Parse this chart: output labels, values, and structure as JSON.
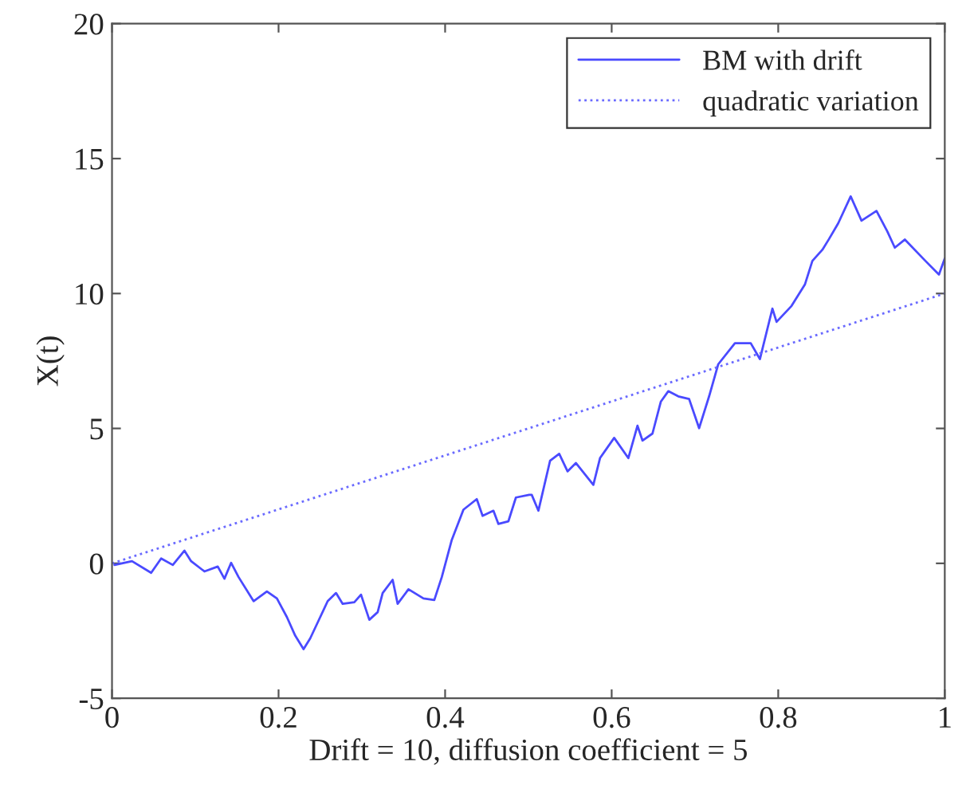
{
  "chart_data": {
    "type": "line",
    "xlabel": "Drift = 10, diffusion coefficient = 5",
    "ylabel": "X(t)",
    "xlim": [
      0,
      1
    ],
    "ylim": [
      -5,
      20
    ],
    "xticks": [
      0,
      0.2,
      0.4,
      0.6,
      0.8,
      1
    ],
    "yticks": [
      -5,
      0,
      5,
      10,
      15,
      20
    ],
    "grid": false,
    "legend": "top right",
    "series": [
      {
        "name": "BM with drift",
        "color": "#4a4aff",
        "line_style": "solid",
        "x": [
          0.003,
          0.024,
          0.047,
          0.059,
          0.073,
          0.087,
          0.095,
          0.111,
          0.127,
          0.135,
          0.143,
          0.152,
          0.17,
          0.186,
          0.198,
          0.21,
          0.22,
          0.23,
          0.238,
          0.247,
          0.259,
          0.269,
          0.277,
          0.291,
          0.299,
          0.309,
          0.319,
          0.325,
          0.337,
          0.343,
          0.356,
          0.374,
          0.387,
          0.396,
          0.408,
          0.422,
          0.438,
          0.445,
          0.458,
          0.464,
          0.476,
          0.485,
          0.501,
          0.504,
          0.512,
          0.526,
          0.537,
          0.547,
          0.557,
          0.578,
          0.586,
          0.603,
          0.62,
          0.631,
          0.637,
          0.649,
          0.659,
          0.668,
          0.68,
          0.693,
          0.705,
          0.717,
          0.728,
          0.748,
          0.767,
          0.778,
          0.793,
          0.798,
          0.816,
          0.832,
          0.841,
          0.853,
          0.861,
          0.872,
          0.887,
          0.9,
          0.918,
          0.931,
          0.94,
          0.952,
          0.977,
          0.993,
          1.0
        ],
        "values": [
          -0.06,
          0.08,
          -0.35,
          0.18,
          -0.06,
          0.47,
          0.08,
          -0.3,
          -0.12,
          -0.57,
          0.02,
          -0.51,
          -1.4,
          -1.04,
          -1.3,
          -1.99,
          -2.68,
          -3.18,
          -2.78,
          -2.19,
          -1.4,
          -1.1,
          -1.5,
          -1.44,
          -1.16,
          -2.09,
          -1.81,
          -1.1,
          -0.61,
          -1.5,
          -0.96,
          -1.3,
          -1.36,
          -0.51,
          0.87,
          1.99,
          2.38,
          1.76,
          1.95,
          1.46,
          1.56,
          2.44,
          2.54,
          2.54,
          1.95,
          3.8,
          4.06,
          3.41,
          3.72,
          2.91,
          3.9,
          4.65,
          3.9,
          5.1,
          4.55,
          4.81,
          5.99,
          6.38,
          6.19,
          6.09,
          5.01,
          6.19,
          7.38,
          8.16,
          8.16,
          7.57,
          9.44,
          8.95,
          9.54,
          10.33,
          11.21,
          11.62,
          12.02,
          12.6,
          13.6,
          12.7,
          13.06,
          12.3,
          11.7,
          12.0,
          11.2,
          10.7,
          11.3
        ]
      },
      {
        "name": "quadratic variation",
        "color": "#6a6aff",
        "line_style": "dotted",
        "x": [
          0,
          1
        ],
        "values": [
          0,
          10
        ]
      }
    ]
  }
}
